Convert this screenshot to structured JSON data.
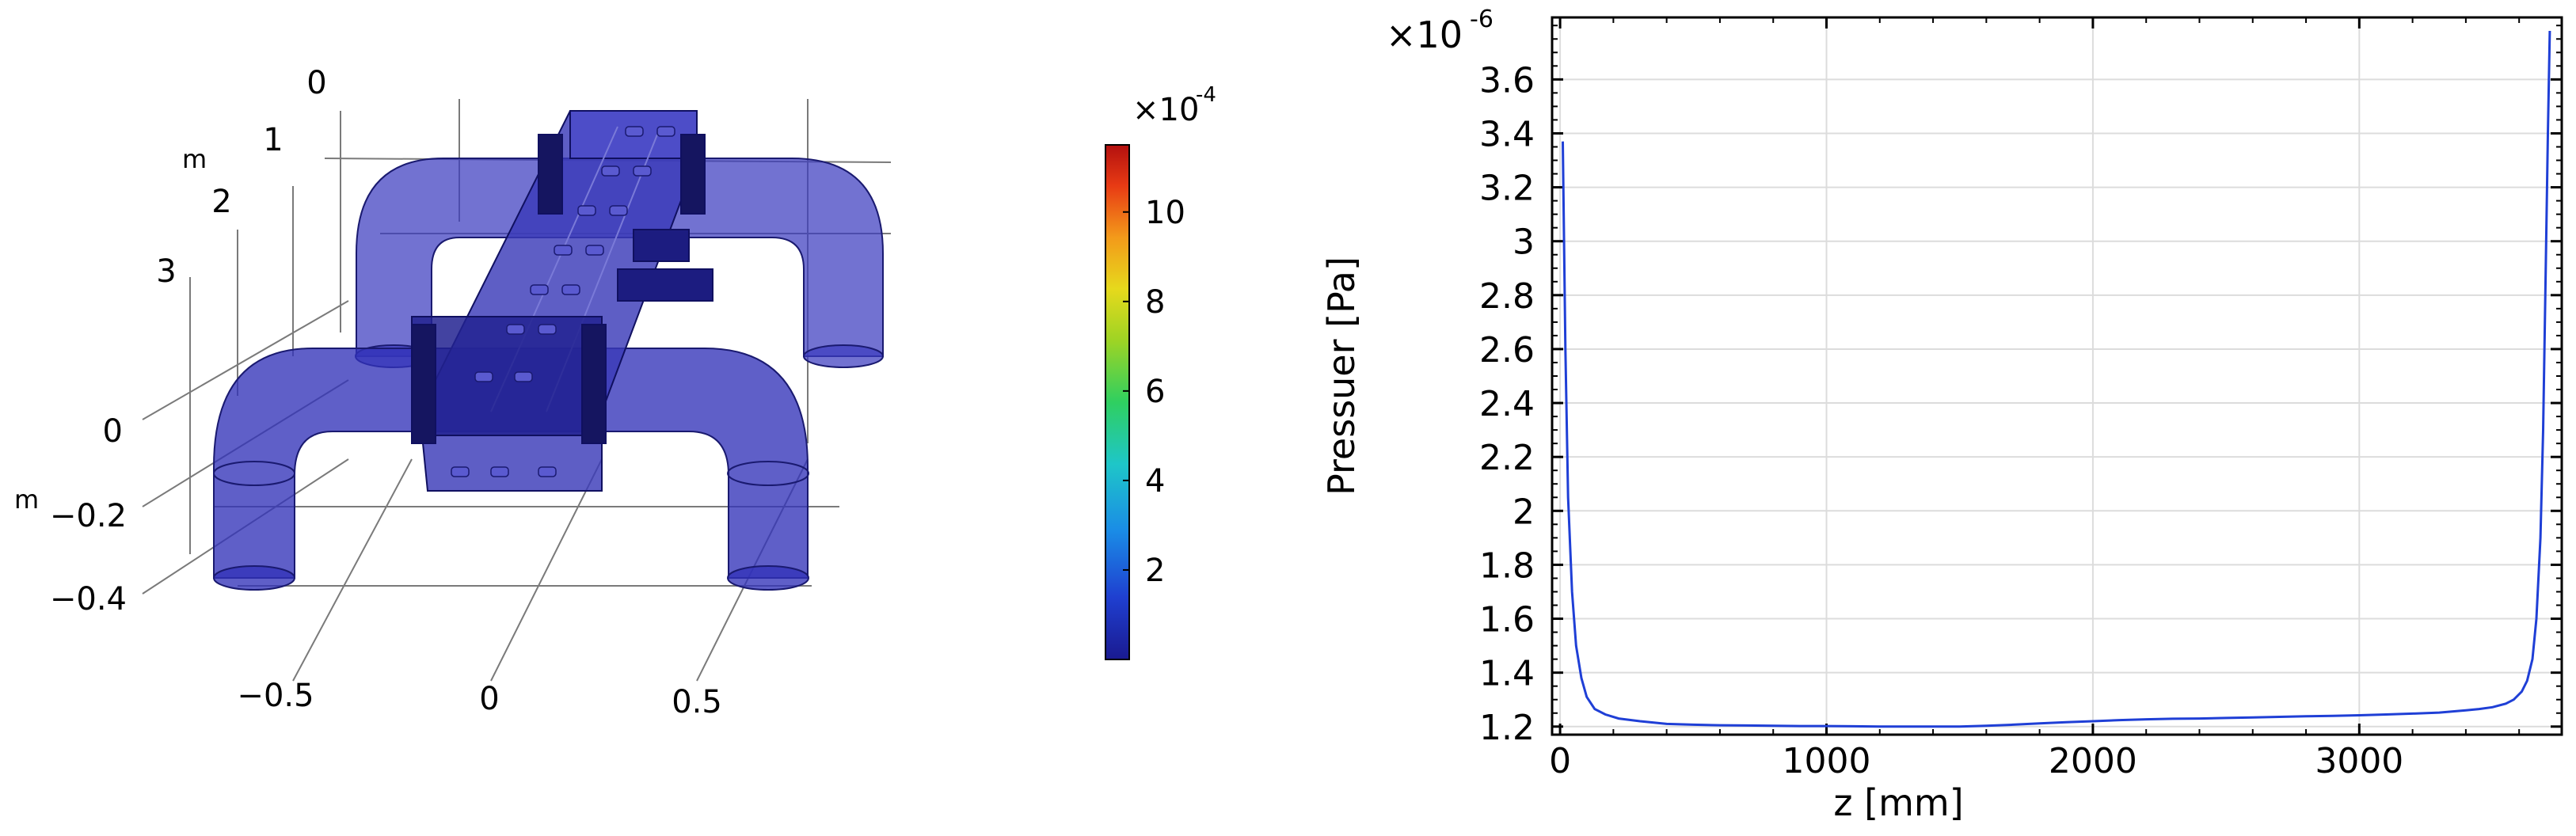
{
  "left_figure": {
    "axis_unit": "m",
    "axis_unit_lower": "m",
    "depth_ticks": [
      "0",
      "1",
      "2",
      "3"
    ],
    "vertical_ticks": [
      "0",
      "−0.2",
      "−0.4"
    ],
    "horizontal_ticks": [
      "−0.5",
      "0",
      "0.5"
    ],
    "colorbar": {
      "exponent_base": "×10",
      "exponent": "-4",
      "tick_labels": [
        "10",
        "8",
        "6",
        "4",
        "2"
      ],
      "tick_values": [
        10,
        8,
        6,
        4,
        2
      ],
      "min": 0,
      "max": 11.5,
      "colormap": "rainbow"
    },
    "model_color": "#2a2ab0"
  },
  "chart_data": {
    "type": "line",
    "xlabel": "z [mm]",
    "ylabel": "Pressuer [Pa]",
    "y_multiplier": "×10",
    "y_exponent": "-6",
    "xlim": [
      -30,
      3760
    ],
    "ylim": [
      1.17,
      3.83
    ],
    "x_ticks": [
      0,
      1000,
      2000,
      3000
    ],
    "y_ticks": [
      1.2,
      1.4,
      1.6,
      1.8,
      2,
      2.2,
      2.4,
      2.6,
      2.8,
      3,
      3.2,
      3.4,
      3.6
    ],
    "y_tick_labels": [
      "1.2",
      "1.4",
      "1.6",
      "1.8",
      "2",
      "2.2",
      "2.4",
      "2.6",
      "2.8",
      "3",
      "3.2",
      "3.4",
      "3.6"
    ],
    "x_tick_labels": [
      "0",
      "1000",
      "2000",
      "3000"
    ],
    "grid": true,
    "line_color": "#1f3fd6",
    "series": [
      {
        "x": [
          10,
          20,
          30,
          45,
          60,
          80,
          100,
          130,
          170,
          220,
          300,
          400,
          500,
          600,
          700,
          800,
          900,
          1000,
          1100,
          1200,
          1300,
          1400,
          1500,
          1600,
          1700,
          1800,
          1900,
          2000,
          2100,
          2200,
          2300,
          2400,
          2500,
          2600,
          2700,
          2800,
          2900,
          3000,
          3100,
          3200,
          3300,
          3400,
          3450,
          3500,
          3550,
          3580,
          3610,
          3630,
          3650,
          3665,
          3680,
          3690,
          3700,
          3708,
          3715
        ],
        "y": [
          3.37,
          2.6,
          2.05,
          1.7,
          1.5,
          1.38,
          1.31,
          1.265,
          1.245,
          1.23,
          1.22,
          1.21,
          1.207,
          1.205,
          1.204,
          1.203,
          1.202,
          1.202,
          1.201,
          1.2,
          1.2,
          1.2,
          1.2,
          1.203,
          1.207,
          1.212,
          1.216,
          1.22,
          1.224,
          1.227,
          1.229,
          1.23,
          1.232,
          1.234,
          1.236,
          1.238,
          1.24,
          1.242,
          1.245,
          1.248,
          1.252,
          1.26,
          1.265,
          1.272,
          1.285,
          1.3,
          1.33,
          1.37,
          1.45,
          1.6,
          1.9,
          2.3,
          2.9,
          3.4,
          3.78
        ]
      }
    ]
  }
}
